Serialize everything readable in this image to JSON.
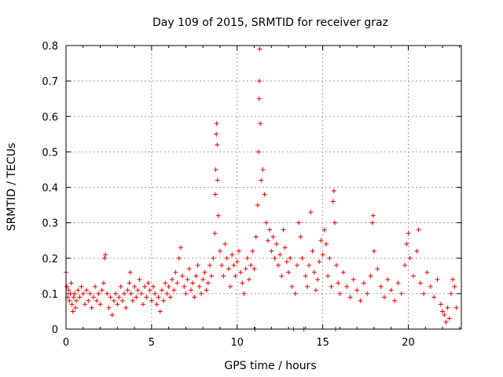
{
  "chart_data": {
    "type": "scatter",
    "title": "Day 109 of 2015, SRMTID for receiver graz",
    "xlabel": "GPS time / hours",
    "ylabel": "SRMTID / TECUs",
    "xlim": [
      0,
      23.1
    ],
    "ylim": [
      0,
      0.8
    ],
    "x_ticks": [
      "0",
      "5",
      "10",
      "15",
      "20"
    ],
    "y_ticks": [
      "0",
      "0.1",
      "0.2",
      "0.3",
      "0.4",
      "0.5",
      "0.6",
      "0.7",
      "0.8"
    ],
    "grid": true,
    "marker": "+",
    "color": "#ee0000",
    "series": [
      {
        "name": "SRMTID",
        "points": [
          [
            0.0,
            0.16
          ],
          [
            0.05,
            0.12
          ],
          [
            0.1,
            0.09
          ],
          [
            0.15,
            0.11
          ],
          [
            0.2,
            0.08
          ],
          [
            0.25,
            0.1
          ],
          [
            0.3,
            0.13
          ],
          [
            0.35,
            0.07
          ],
          [
            0.4,
            0.05
          ],
          [
            0.45,
            0.09
          ],
          [
            0.5,
            0.1
          ],
          [
            0.55,
            0.06
          ],
          [
            0.6,
            0.08
          ],
          [
            0.7,
            0.11
          ],
          [
            0.8,
            0.09
          ],
          [
            0.9,
            0.12
          ],
          [
            1.0,
            0.1
          ],
          [
            1.1,
            0.07
          ],
          [
            1.2,
            0.11
          ],
          [
            1.3,
            0.08
          ],
          [
            1.4,
            0.1
          ],
          [
            1.5,
            0.06
          ],
          [
            1.6,
            0.09
          ],
          [
            1.7,
            0.12
          ],
          [
            1.8,
            0.08
          ],
          [
            1.9,
            0.1
          ],
          [
            2.0,
            0.07
          ],
          [
            2.1,
            0.11
          ],
          [
            2.2,
            0.13
          ],
          [
            2.25,
            0.2
          ],
          [
            2.3,
            0.21
          ],
          [
            2.4,
            0.1
          ],
          [
            2.5,
            0.06
          ],
          [
            2.6,
            0.09
          ],
          [
            2.7,
            0.04
          ],
          [
            2.8,
            0.08
          ],
          [
            2.9,
            0.1
          ],
          [
            3.0,
            0.07
          ],
          [
            3.1,
            0.09
          ],
          [
            3.2,
            0.12
          ],
          [
            3.3,
            0.08
          ],
          [
            3.4,
            0.1
          ],
          [
            3.5,
            0.06
          ],
          [
            3.6,
            0.11
          ],
          [
            3.7,
            0.13
          ],
          [
            3.75,
            0.16
          ],
          [
            3.8,
            0.1
          ],
          [
            3.9,
            0.08
          ],
          [
            4.0,
            0.12
          ],
          [
            4.1,
            0.09
          ],
          [
            4.2,
            0.11
          ],
          [
            4.3,
            0.14
          ],
          [
            4.4,
            0.1
          ],
          [
            4.5,
            0.07
          ],
          [
            4.6,
            0.12
          ],
          [
            4.7,
            0.09
          ],
          [
            4.8,
            0.13
          ],
          [
            4.9,
            0.11
          ],
          [
            5.0,
            0.08
          ],
          [
            5.1,
            0.12
          ],
          [
            5.2,
            0.1
          ],
          [
            5.3,
            0.07
          ],
          [
            5.4,
            0.09
          ],
          [
            5.5,
            0.05
          ],
          [
            5.6,
            0.11
          ],
          [
            5.7,
            0.08
          ],
          [
            5.8,
            0.13
          ],
          [
            5.9,
            0.1
          ],
          [
            6.0,
            0.12
          ],
          [
            6.1,
            0.09
          ],
          [
            6.2,
            0.14
          ],
          [
            6.3,
            0.11
          ],
          [
            6.4,
            0.16
          ],
          [
            6.5,
            0.13
          ],
          [
            6.6,
            0.2
          ],
          [
            6.7,
            0.23
          ],
          [
            6.8,
            0.15
          ],
          [
            6.9,
            0.12
          ],
          [
            7.0,
            0.1
          ],
          [
            7.1,
            0.14
          ],
          [
            7.2,
            0.17
          ],
          [
            7.3,
            0.11
          ],
          [
            7.4,
            0.13
          ],
          [
            7.5,
            0.09
          ],
          [
            7.6,
            0.15
          ],
          [
            7.7,
            0.18
          ],
          [
            7.8,
            0.12
          ],
          [
            7.9,
            0.1
          ],
          [
            8.0,
            0.14
          ],
          [
            8.1,
            0.16
          ],
          [
            8.2,
            0.11
          ],
          [
            8.3,
            0.13
          ],
          [
            8.4,
            0.18
          ],
          [
            8.5,
            0.15
          ],
          [
            8.6,
            0.2
          ],
          [
            8.7,
            0.27
          ],
          [
            8.72,
            0.38
          ],
          [
            8.75,
            0.45
          ],
          [
            8.78,
            0.55
          ],
          [
            8.8,
            0.58
          ],
          [
            8.83,
            0.52
          ],
          [
            8.85,
            0.42
          ],
          [
            8.9,
            0.32
          ],
          [
            9.0,
            0.22
          ],
          [
            9.1,
            0.18
          ],
          [
            9.2,
            0.15
          ],
          [
            9.3,
            0.24
          ],
          [
            9.4,
            0.2
          ],
          [
            9.5,
            0.17
          ],
          [
            9.6,
            0.12
          ],
          [
            9.7,
            0.21
          ],
          [
            9.8,
            0.18
          ],
          [
            9.9,
            0.15
          ],
          [
            10.0,
            0.19
          ],
          [
            10.1,
            0.22
          ],
          [
            10.2,
            0.16
          ],
          [
            10.3,
            0.13
          ],
          [
            10.4,
            0.1
          ],
          [
            10.5,
            0.17
          ],
          [
            10.6,
            0.2
          ],
          [
            10.7,
            0.14
          ],
          [
            10.8,
            0.18
          ],
          [
            10.9,
            0.22
          ],
          [
            11.0,
            0.17
          ],
          [
            11.05,
            0.0
          ],
          [
            11.1,
            0.26
          ],
          [
            11.2,
            0.35
          ],
          [
            11.25,
            0.5
          ],
          [
            11.28,
            0.65
          ],
          [
            11.3,
            0.7
          ],
          [
            11.32,
            0.79
          ],
          [
            11.35,
            0.58
          ],
          [
            11.4,
            0.42
          ],
          [
            11.5,
            0.45
          ],
          [
            11.6,
            0.38
          ],
          [
            11.7,
            0.3
          ],
          [
            11.8,
            0.25
          ],
          [
            11.9,
            0.28
          ],
          [
            12.0,
            0.22
          ],
          [
            12.1,
            0.26
          ],
          [
            12.2,
            0.2
          ],
          [
            12.3,
            0.24
          ],
          [
            12.4,
            0.18
          ],
          [
            12.5,
            0.21
          ],
          [
            12.6,
            0.15
          ],
          [
            12.7,
            0.28
          ],
          [
            12.8,
            0.23
          ],
          [
            12.9,
            0.19
          ],
          [
            13.0,
            0.16
          ],
          [
            13.1,
            0.2
          ],
          [
            13.2,
            0.12
          ],
          [
            13.3,
            0.0
          ],
          [
            13.4,
            0.1
          ],
          [
            13.5,
            0.18
          ],
          [
            13.6,
            0.3
          ],
          [
            13.7,
            0.26
          ],
          [
            13.8,
            0.2
          ],
          [
            13.9,
            0.0
          ],
          [
            14.0,
            0.15
          ],
          [
            14.1,
            0.12
          ],
          [
            14.2,
            0.18
          ],
          [
            14.3,
            0.33
          ],
          [
            14.4,
            0.22
          ],
          [
            14.5,
            0.16
          ],
          [
            14.6,
            0.11
          ],
          [
            14.7,
            0.14
          ],
          [
            14.8,
            0.19
          ],
          [
            14.9,
            0.25
          ],
          [
            15.0,
            0.21
          ],
          [
            15.1,
            0.28
          ],
          [
            15.2,
            0.24
          ],
          [
            15.3,
            0.15
          ],
          [
            15.4,
            0.2
          ],
          [
            15.5,
            0.12
          ],
          [
            15.6,
            0.36
          ],
          [
            15.65,
            0.39
          ],
          [
            15.7,
            0.3
          ],
          [
            15.75,
            0.0
          ],
          [
            15.8,
            0.18
          ],
          [
            15.9,
            0.13
          ],
          [
            16.0,
            0.1
          ],
          [
            16.2,
            0.16
          ],
          [
            16.4,
            0.12
          ],
          [
            16.6,
            0.09
          ],
          [
            16.8,
            0.14
          ],
          [
            17.0,
            0.11
          ],
          [
            17.2,
            0.08
          ],
          [
            17.4,
            0.13
          ],
          [
            17.6,
            0.1
          ],
          [
            17.8,
            0.15
          ],
          [
            17.9,
            0.3
          ],
          [
            17.95,
            0.32
          ],
          [
            18.0,
            0.22
          ],
          [
            18.2,
            0.17
          ],
          [
            18.4,
            0.12
          ],
          [
            18.6,
            0.09
          ],
          [
            18.8,
            0.14
          ],
          [
            19.0,
            0.11
          ],
          [
            19.2,
            0.08
          ],
          [
            19.4,
            0.13
          ],
          [
            19.6,
            0.1
          ],
          [
            19.8,
            0.18
          ],
          [
            19.9,
            0.24
          ],
          [
            20.0,
            0.27
          ],
          [
            20.1,
            0.2
          ],
          [
            20.3,
            0.15
          ],
          [
            20.5,
            0.22
          ],
          [
            20.6,
            0.28
          ],
          [
            20.7,
            0.13
          ],
          [
            20.9,
            0.1
          ],
          [
            21.1,
            0.16
          ],
          [
            21.3,
            0.12
          ],
          [
            21.5,
            0.09
          ],
          [
            21.7,
            0.14
          ],
          [
            21.9,
            0.07
          ],
          [
            22.0,
            0.05
          ],
          [
            22.1,
            0.04
          ],
          [
            22.2,
            0.02
          ],
          [
            22.3,
            0.06
          ],
          [
            22.4,
            0.03
          ],
          [
            22.5,
            0.1
          ],
          [
            22.6,
            0.14
          ],
          [
            22.7,
            0.12
          ],
          [
            22.8,
            0.06
          ]
        ]
      }
    ]
  }
}
